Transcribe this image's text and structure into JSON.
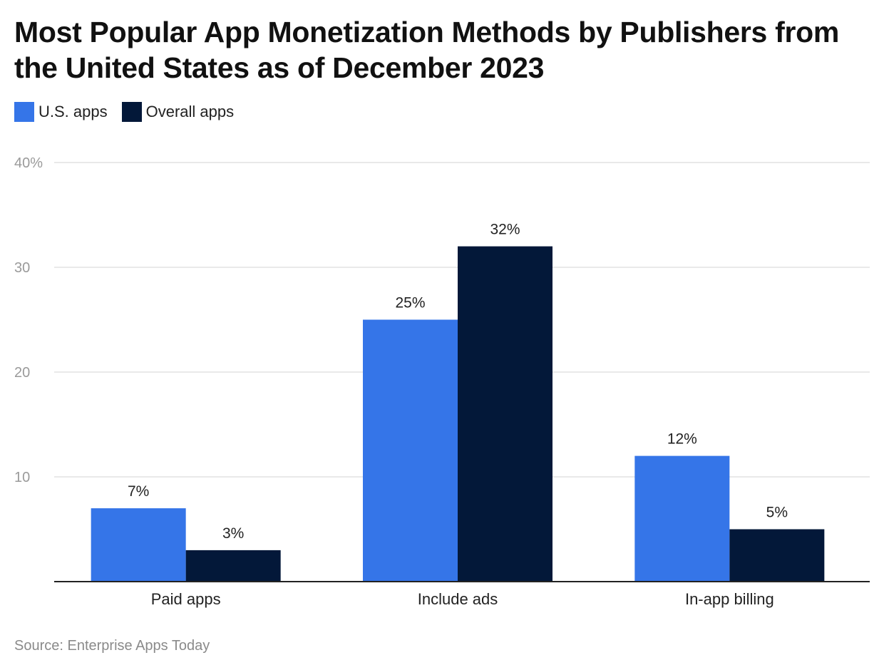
{
  "title": "Most Popular App Monetization Methods by Publishers from the United States as of December 2023",
  "source": "Source: Enterprise Apps Today",
  "legend": [
    {
      "label": "U.S. apps",
      "color": "#3575e8"
    },
    {
      "label": "Overall apps",
      "color": "#031839"
    }
  ],
  "chart_data": {
    "type": "bar",
    "categories": [
      "Paid apps",
      "Include ads",
      "In-app billing"
    ],
    "series": [
      {
        "name": "U.S. apps",
        "values": [
          7,
          25,
          12
        ],
        "labels": [
          "7%",
          "25%",
          "12%"
        ],
        "color": "#3575e8"
      },
      {
        "name": "Overall apps",
        "values": [
          3,
          32,
          5
        ],
        "labels": [
          "3%",
          "32%",
          "5%"
        ],
        "color": "#031839"
      }
    ],
    "yticks": [
      {
        "value": 10,
        "label": "10"
      },
      {
        "value": 20,
        "label": "20"
      },
      {
        "value": 30,
        "label": "30"
      },
      {
        "value": 40,
        "label": "40%"
      }
    ],
    "ylim": [
      0,
      40
    ],
    "xlabel": "",
    "ylabel": "",
    "grid": true,
    "legend_position": "top-left"
  }
}
